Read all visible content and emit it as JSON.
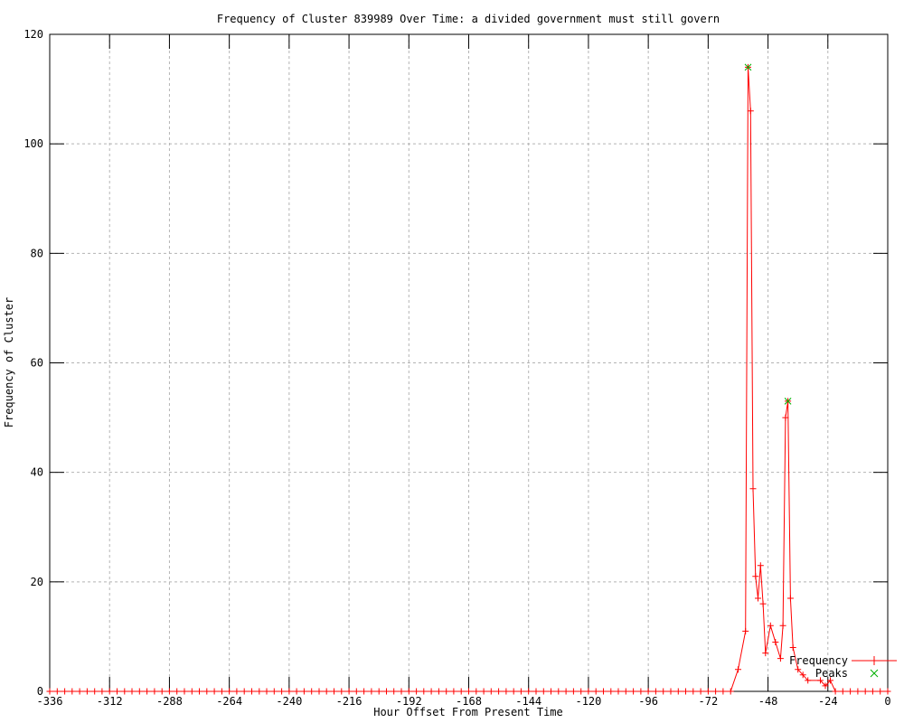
{
  "colors": {
    "frequency_line": "#ff0000",
    "peaks_marker": "#00b000",
    "grid": "#b4b4b4",
    "axis": "#000000",
    "text": "#000000",
    "background": "#ffffff"
  },
  "legend": {
    "frequency_label": "Frequency",
    "peaks_label": "Peaks"
  },
  "chart_data": {
    "type": "line",
    "title": "Frequency of Cluster 839989 Over Time: a divided government must still govern",
    "xlabel": "Hour Offset From Present Time",
    "ylabel": "Frequency of Cluster",
    "xlim": [
      -336,
      0
    ],
    "ylim": [
      0,
      120
    ],
    "xticks": [
      -336,
      -312,
      -288,
      -264,
      -240,
      -216,
      -192,
      -168,
      -144,
      -120,
      -96,
      -72,
      -48,
      -24,
      0
    ],
    "yticks": [
      0,
      20,
      40,
      60,
      80,
      100,
      120
    ],
    "grid": true,
    "legend_position": "inside-bottom-right",
    "series": [
      {
        "name": "Frequency",
        "color": "#ff0000",
        "marker": "plus",
        "style": "linespoints",
        "zero_baseline": {
          "x_start": -336,
          "x_end": -63,
          "step": 3,
          "value": 0
        },
        "points": [
          [
            -60,
            4
          ],
          [
            -57,
            11
          ],
          [
            -56,
            114
          ],
          [
            -55,
            106
          ],
          [
            -54,
            37
          ],
          [
            -53,
            21
          ],
          [
            -52,
            17
          ],
          [
            -51,
            23
          ],
          [
            -50,
            16
          ],
          [
            -49,
            7
          ],
          [
            -47,
            12
          ],
          [
            -45,
            9
          ],
          [
            -43,
            6
          ],
          [
            -42,
            12
          ],
          [
            -41,
            50
          ],
          [
            -40,
            53
          ],
          [
            -39,
            17
          ],
          [
            -38,
            8
          ],
          [
            -36,
            4
          ],
          [
            -34,
            3
          ],
          [
            -32,
            2
          ],
          [
            -27,
            2
          ],
          [
            -25,
            1
          ],
          [
            -23,
            2
          ],
          [
            -21,
            0
          ],
          [
            -18,
            0
          ],
          [
            -15,
            0
          ],
          [
            -12,
            0
          ],
          [
            -9,
            0
          ],
          [
            -6,
            0
          ],
          [
            -3,
            0
          ],
          [
            0,
            0
          ]
        ]
      },
      {
        "name": "Peaks",
        "color": "#00b000",
        "marker": "cross",
        "style": "points",
        "points": [
          [
            -56,
            114
          ],
          [
            -40,
            53
          ]
        ]
      }
    ]
  }
}
